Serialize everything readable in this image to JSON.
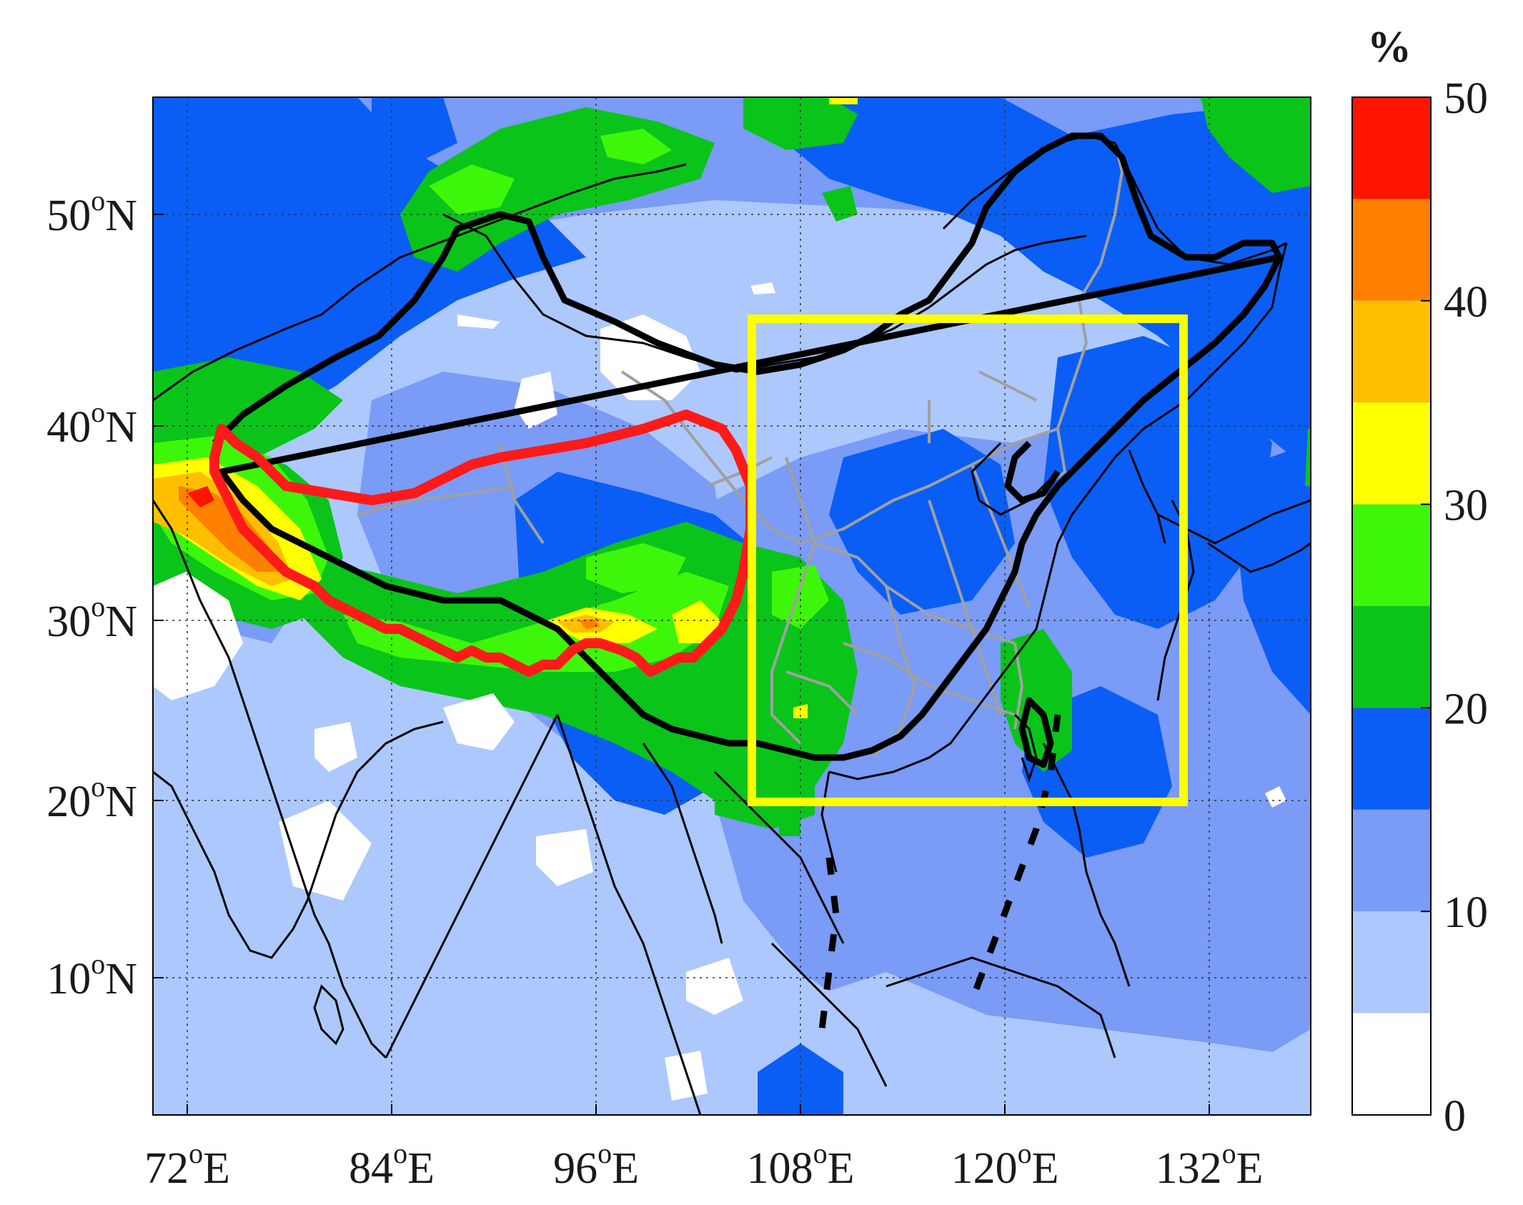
{
  "map": {
    "lon_range": [
      69,
      138
    ],
    "lat_range": [
      2,
      56
    ],
    "x_ticks": [
      {
        "value": 72,
        "label": "72",
        "sup": "o",
        "hemi": "E"
      },
      {
        "value": 84,
        "label": "84",
        "sup": "o",
        "hemi": "E"
      },
      {
        "value": 96,
        "label": "96",
        "sup": "o",
        "hemi": "E"
      },
      {
        "value": 108,
        "label": "108",
        "sup": "o",
        "hemi": "E"
      },
      {
        "value": 120,
        "label": "120",
        "sup": "o",
        "hemi": "E"
      },
      {
        "value": 132,
        "label": "132",
        "sup": "o",
        "hemi": "E"
      }
    ],
    "y_ticks": [
      {
        "value": 10,
        "label": "10",
        "sup": "o",
        "hemi": "N"
      },
      {
        "value": 20,
        "label": "20",
        "sup": "o",
        "hemi": "N"
      },
      {
        "value": 30,
        "label": "30",
        "sup": "o",
        "hemi": "N"
      },
      {
        "value": 40,
        "label": "40",
        "sup": "o",
        "hemi": "N"
      },
      {
        "value": 50,
        "label": "50",
        "sup": "o",
        "hemi": "N"
      }
    ],
    "grid": "dotted",
    "study_box": {
      "lon": [
        104.5,
        130.5
      ],
      "lat": [
        20,
        45
      ],
      "color": "#ffff00"
    },
    "tibetan_plateau_outline_color": "#ff1a1a",
    "coastline_color": "#000000",
    "province_color": "#a0a0a0"
  },
  "colorbar": {
    "unit": "%",
    "ticks": [
      "0",
      "10",
      "20",
      "30",
      "40",
      "50"
    ],
    "levels": [
      {
        "range": [
          0,
          5
        ],
        "color": "#ffffff"
      },
      {
        "range": [
          5,
          10
        ],
        "color": "#adc8fd"
      },
      {
        "range": [
          10,
          15
        ],
        "color": "#7a9bf6"
      },
      {
        "range": [
          15,
          20
        ],
        "color": "#0a5ef5"
      },
      {
        "range": [
          20,
          25
        ],
        "color": "#0ac41a"
      },
      {
        "range": [
          25,
          30
        ],
        "color": "#3ef60a"
      },
      {
        "range": [
          30,
          35
        ],
        "color": "#ffff00"
      },
      {
        "range": [
          35,
          40
        ],
        "color": "#ffbf00"
      },
      {
        "range": [
          40,
          45
        ],
        "color": "#ff7f00"
      },
      {
        "range": [
          45,
          50
        ],
        "color": "#ff1400"
      }
    ]
  }
}
